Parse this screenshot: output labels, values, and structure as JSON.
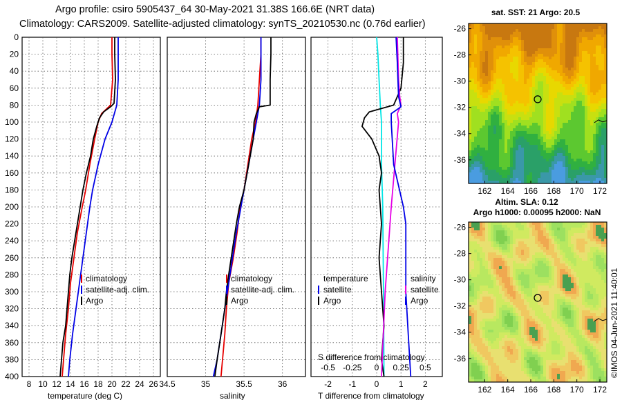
{
  "header": {
    "line1": "Argo profile: csiro 5905437_64 30-May-2021 31.38S 166.6E (NRT data)",
    "line2": "Climatology: CARS2009. Satellite-adjusted climatology: synTS_20210530.nc (0.76d earlier)"
  },
  "colors": {
    "climatology": "#e60000",
    "satellite": "#0000e6",
    "argo": "#000000",
    "temp_diff": "#00e5e5",
    "sal_diff": "#e600e6",
    "sal_satellite_diff": "#e600e6"
  },
  "chart_data": [
    {
      "id": "temperature",
      "type": "line",
      "xlabel": "temperature (deg C)",
      "ylabel": "",
      "xlim": [
        7,
        27
      ],
      "ylim": [
        400,
        0
      ],
      "x_ticks": [
        "8",
        "10",
        "12",
        "14",
        "16",
        "18",
        "20",
        "22",
        "24",
        "26"
      ],
      "x_tick_values": [
        8,
        10,
        12,
        14,
        16,
        18,
        20,
        22,
        24,
        26
      ],
      "y_ticks": [
        "0",
        "20",
        "40",
        "60",
        "80",
        "100",
        "120",
        "140",
        "160",
        "180",
        "200",
        "220",
        "240",
        "260",
        "280",
        "300",
        "320",
        "340",
        "360",
        "380",
        "400"
      ],
      "y_tick_values": [
        0,
        20,
        40,
        60,
        80,
        100,
        120,
        140,
        160,
        180,
        200,
        220,
        240,
        260,
        280,
        300,
        320,
        340,
        360,
        380,
        400
      ],
      "legend": [
        "climatology",
        "satellite-adj. clim.",
        "Argo"
      ],
      "series": [
        {
          "name": "climatology",
          "color": "red",
          "depth": [
            0,
            20,
            50,
            80,
            90,
            100,
            120,
            150,
            180,
            200,
            230,
            260,
            290,
            320,
            350,
            380,
            400
          ],
          "values": [
            20.0,
            20.0,
            20.1,
            19.8,
            18.5,
            18.0,
            17.5,
            16.8,
            16.2,
            15.7,
            15.0,
            14.5,
            14.0,
            13.7,
            13.3,
            13.0,
            12.8
          ]
        },
        {
          "name": "satellite-adj. clim.",
          "color": "blue",
          "depth": [
            0,
            20,
            50,
            80,
            100,
            120,
            150,
            180,
            200,
            230,
            260,
            290,
            320,
            350,
            380,
            400
          ],
          "values": [
            20.9,
            20.9,
            20.9,
            20.7,
            20.0,
            19.0,
            18.0,
            17.2,
            16.8,
            16.3,
            15.8,
            15.3,
            14.8,
            14.3,
            13.9,
            13.7
          ]
        },
        {
          "name": "Argo",
          "color": "black",
          "depth": [
            0,
            20,
            50,
            78,
            82,
            88,
            95,
            105,
            120,
            140,
            160,
            180,
            200,
            220,
            240,
            260,
            280,
            300,
            320,
            340,
            360,
            380,
            400
          ],
          "values": [
            20.4,
            20.4,
            20.5,
            20.3,
            19.8,
            18.8,
            18.2,
            17.8,
            17.3,
            16.9,
            16.3,
            15.8,
            15.4,
            15.0,
            14.6,
            14.2,
            13.9,
            13.7,
            13.5,
            13.3,
            12.9,
            12.7,
            12.5
          ]
        }
      ]
    },
    {
      "id": "salinity",
      "type": "line",
      "xlabel": "salinity",
      "ylabel": "",
      "xlim": [
        34.5,
        36.3
      ],
      "ylim": [
        400,
        0
      ],
      "x_ticks": [
        "34.5",
        "35",
        "35.5",
        "36"
      ],
      "x_tick_values": [
        34.5,
        35,
        35.5,
        36
      ],
      "legend": [
        "climatology",
        "satellite-adj. clim.",
        "Argo"
      ],
      "series": [
        {
          "name": "climatology",
          "color": "red",
          "depth": [
            0,
            20,
            50,
            80,
            100,
            120,
            150,
            180,
            200,
            230,
            260,
            290,
            320,
            350,
            380,
            400
          ],
          "values": [
            35.72,
            35.72,
            35.7,
            35.68,
            35.65,
            35.6,
            35.55,
            35.5,
            35.45,
            35.41,
            35.36,
            35.3,
            35.27,
            35.25,
            35.22,
            35.2
          ]
        },
        {
          "name": "satellite-adj. clim.",
          "color": "blue",
          "depth": [
            0,
            20,
            50,
            80,
            100,
            120,
            150,
            180,
            200,
            230,
            260,
            290,
            320,
            350,
            380,
            400
          ],
          "values": [
            35.72,
            35.72,
            35.72,
            35.7,
            35.66,
            35.62,
            35.56,
            35.5,
            35.46,
            35.4,
            35.35,
            35.3,
            35.25,
            35.2,
            35.15,
            35.1
          ]
        },
        {
          "name": "Argo",
          "color": "black",
          "depth": [
            0,
            20,
            50,
            80,
            82,
            90,
            100,
            120,
            140,
            160,
            180,
            200,
            220,
            250,
            280,
            300,
            320,
            350,
            380,
            400
          ],
          "values": [
            35.85,
            35.85,
            35.84,
            35.84,
            35.7,
            35.66,
            35.63,
            35.62,
            35.58,
            35.54,
            35.5,
            35.44,
            35.4,
            35.35,
            35.3,
            35.27,
            35.25,
            35.2,
            35.15,
            35.12
          ]
        }
      ]
    },
    {
      "id": "differences",
      "type": "line",
      "xlabel": "T difference from climatology",
      "top_label": "S difference from climatology",
      "xlim": [
        -2.7,
        2.7
      ],
      "ylim": [
        400,
        0
      ],
      "x_ticks": [
        "-2",
        "-1",
        "0",
        "1",
        "2"
      ],
      "x_tick_values": [
        -2,
        -1,
        0,
        1,
        2
      ],
      "top_ticks": [
        "-0.5",
        "-0.25",
        "0",
        "0.25",
        "0.5"
      ],
      "top_tick_values": [
        -0.5,
        -0.25,
        0,
        0.25,
        0.5
      ],
      "legend_left": [
        "temperature",
        "satellite",
        "Argo"
      ],
      "legend_right": [
        "salinity",
        "satellite",
        "Argo"
      ],
      "series": [
        {
          "name": "temperature satellite",
          "color": "cyan",
          "depth": [
            0,
            20,
            50,
            80,
            100,
            150,
            200,
            300,
            400
          ],
          "values": [
            0.0,
            0.05,
            0.1,
            0.15,
            0.2,
            0.2,
            0.25,
            0.28,
            0.3
          ]
        },
        {
          "name": "temperature Argo",
          "color": "black",
          "depth": [
            0,
            30,
            60,
            80,
            88,
            95,
            105,
            120,
            140,
            160,
            180,
            220,
            260,
            300,
            340,
            380,
            400
          ],
          "values": [
            1.1,
            1.1,
            1.0,
            0.7,
            -0.3,
            -0.5,
            -0.6,
            -0.2,
            0.1,
            0.2,
            0.1,
            0.2,
            0.1,
            0.2,
            0.3,
            0.2,
            0.3
          ]
        },
        {
          "name": "salinity satellite",
          "color": "magenta",
          "depth": [
            0,
            20,
            50,
            70,
            80,
            90,
            100,
            150,
            200,
            300,
            400
          ],
          "values": [
            0.85,
            0.87,
            0.9,
            0.95,
            1.0,
            0.85,
            0.9,
            0.75,
            0.6,
            0.35,
            0.2
          ]
        },
        {
          "name": "salinity Argo",
          "color": "blue",
          "depth": [
            0,
            30,
            70,
            82,
            90,
            100,
            150,
            200,
            220,
            300,
            350,
            400
          ],
          "values": [
            0.8,
            0.85,
            0.9,
            1.0,
            0.6,
            0.6,
            0.7,
            1.1,
            1.2,
            1.2,
            1.3,
            1.4
          ]
        }
      ]
    }
  ],
  "maps": [
    {
      "id": "sst_map",
      "title": "sat. SST: 21 Argo: 20.5",
      "lat_ticks": [
        "-26",
        "-28",
        "-30",
        "-32",
        "-34",
        "-36"
      ],
      "lon_ticks": [
        "162",
        "164",
        "166",
        "168",
        "170",
        "172"
      ]
    },
    {
      "id": "sla_map",
      "title1": "Altim. SLA: 0.12",
      "title2": "Argo h1000: 0.00095 h2000: NaN",
      "lat_ticks": [
        "-26",
        "-28",
        "-30",
        "-32",
        "-34",
        "-36"
      ],
      "lon_ticks": [
        "162",
        "164",
        "166",
        "168",
        "170",
        "172"
      ]
    }
  ],
  "credit": "©IMOS 04-Jun-2021 11:40:01"
}
